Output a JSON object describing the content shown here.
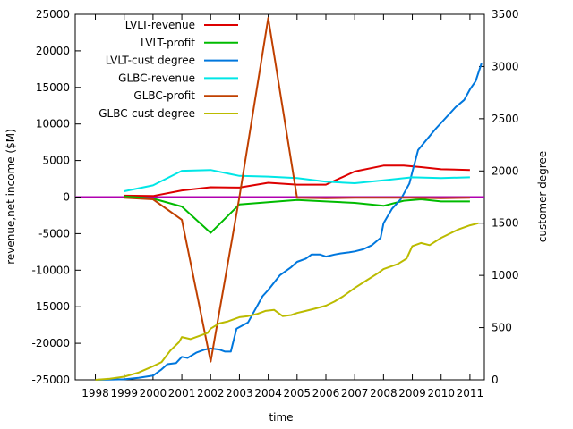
{
  "chart_data": {
    "type": "line",
    "xlabel": "time",
    "ylabel_left": "revenue,net income ($M)",
    "ylabel_right": "customer degree",
    "x_range": [
      1997.3,
      2011.5
    ],
    "ylim_left": [
      -25000,
      25000
    ],
    "ylim_right": [
      0,
      3500
    ],
    "grid": false,
    "legend_position": "top-left",
    "x_ticks": [
      1998,
      1999,
      2000,
      2001,
      2002,
      2003,
      2004,
      2005,
      2006,
      2007,
      2008,
      2009,
      2010,
      2011
    ],
    "x_tick_labels": [
      "1998",
      "1999",
      "2000",
      "2001",
      "2002",
      "2003",
      "2004",
      "2005",
      "2006",
      "2007",
      "2008",
      "2009",
      "2010",
      "2011"
    ],
    "y_ticks_left": [
      25000,
      20000,
      15000,
      10000,
      5000,
      0,
      -5000,
      -10000,
      -15000,
      -20000,
      -25000
    ],
    "y_tick_labels_left": [
      "25000",
      "20000",
      "15000",
      "10000",
      "5000",
      "0",
      "-5000",
      "-10000",
      "-15000",
      "-20000",
      "-25000"
    ],
    "y_ticks_right": [
      3500,
      3000,
      2500,
      2000,
      1500,
      1000,
      500,
      0
    ],
    "y_tick_labels_right": [
      "3500",
      "3000",
      "2500",
      "2000",
      "1500",
      "1000",
      "500",
      "0"
    ],
    "zero_line_color": "#b000b0",
    "series": [
      {
        "name": "LVLT-revenue",
        "color": "#dd0000",
        "axis": "left",
        "points": [
          [
            1999.0,
            200
          ],
          [
            2000.0,
            150
          ],
          [
            2001.0,
            900
          ],
          [
            2002.0,
            1350
          ],
          [
            2003.0,
            1300
          ],
          [
            2004.0,
            1950
          ],
          [
            2005.0,
            1700
          ],
          [
            2006.0,
            1700
          ],
          [
            2007.0,
            3500
          ],
          [
            2008.0,
            4300
          ],
          [
            2008.7,
            4300
          ],
          [
            2009.3,
            4100
          ],
          [
            2010.0,
            3800
          ],
          [
            2011.0,
            3700
          ]
        ]
      },
      {
        "name": "LVLT-profit",
        "color": "#00bb00",
        "axis": "left",
        "points": [
          [
            1999.0,
            100
          ],
          [
            2000.0,
            -200
          ],
          [
            2001.0,
            -1300
          ],
          [
            2002.0,
            -4900
          ],
          [
            2003.0,
            -1000
          ],
          [
            2004.0,
            -700
          ],
          [
            2005.0,
            -400
          ],
          [
            2006.0,
            -600
          ],
          [
            2007.0,
            -800
          ],
          [
            2008.0,
            -1200
          ],
          [
            2008.7,
            -500
          ],
          [
            2009.3,
            -300
          ],
          [
            2010.0,
            -600
          ],
          [
            2011.0,
            -600
          ]
        ]
      },
      {
        "name": "LVLT-cust degree",
        "color": "#0077dd",
        "axis": "right",
        "points": [
          [
            1998.0,
            0
          ],
          [
            1999.0,
            5
          ],
          [
            1999.5,
            20
          ],
          [
            2000.0,
            40
          ],
          [
            2000.3,
            100
          ],
          [
            2000.5,
            150
          ],
          [
            2000.8,
            160
          ],
          [
            2001.0,
            220
          ],
          [
            2001.2,
            210
          ],
          [
            2001.5,
            260
          ],
          [
            2001.8,
            290
          ],
          [
            2002.0,
            300
          ],
          [
            2002.3,
            290
          ],
          [
            2002.5,
            270
          ],
          [
            2002.7,
            270
          ],
          [
            2002.9,
            490
          ],
          [
            2003.3,
            550
          ],
          [
            2003.6,
            700
          ],
          [
            2003.8,
            800
          ],
          [
            2004.0,
            860
          ],
          [
            2004.4,
            1000
          ],
          [
            2004.8,
            1080
          ],
          [
            2005.0,
            1130
          ],
          [
            2005.3,
            1160
          ],
          [
            2005.5,
            1200
          ],
          [
            2005.8,
            1200
          ],
          [
            2006.0,
            1180
          ],
          [
            2006.3,
            1200
          ],
          [
            2006.5,
            1210
          ],
          [
            2006.8,
            1220
          ],
          [
            2007.0,
            1230
          ],
          [
            2007.3,
            1250
          ],
          [
            2007.6,
            1290
          ],
          [
            2007.9,
            1360
          ],
          [
            2008.0,
            1500
          ],
          [
            2008.3,
            1640
          ],
          [
            2008.6,
            1730
          ],
          [
            2008.9,
            1880
          ],
          [
            2009.0,
            1990
          ],
          [
            2009.2,
            2200
          ],
          [
            2009.5,
            2300
          ],
          [
            2009.8,
            2400
          ],
          [
            2010.0,
            2460
          ],
          [
            2010.3,
            2550
          ],
          [
            2010.5,
            2610
          ],
          [
            2010.8,
            2680
          ],
          [
            2011.0,
            2780
          ],
          [
            2011.2,
            2860
          ],
          [
            2011.4,
            3030
          ]
        ]
      },
      {
        "name": "GLBC-revenue",
        "color": "#00e6e6",
        "axis": "left",
        "points": [
          [
            1999.0,
            800
          ],
          [
            2000.0,
            1600
          ],
          [
            2001.0,
            3600
          ],
          [
            2002.0,
            3700
          ],
          [
            2003.0,
            2900
          ],
          [
            2004.0,
            2800
          ],
          [
            2005.0,
            2600
          ],
          [
            2006.0,
            2100
          ],
          [
            2007.0,
            1900
          ],
          [
            2008.0,
            2300
          ],
          [
            2009.0,
            2700
          ],
          [
            2010.0,
            2600
          ],
          [
            2011.0,
            2700
          ]
        ]
      },
      {
        "name": "GLBC-profit",
        "color": "#c04000",
        "axis": "left",
        "points": [
          [
            1999.0,
            -100
          ],
          [
            2000.0,
            -300
          ],
          [
            2001.0,
            -3100
          ],
          [
            2002.0,
            -22500
          ],
          [
            2003.0,
            0
          ],
          [
            2004.0,
            24500
          ],
          [
            2005.0,
            -100
          ],
          [
            2006.0,
            -150
          ],
          [
            2007.0,
            -100
          ],
          [
            2008.0,
            -100
          ],
          [
            2009.0,
            -100
          ],
          [
            2010.0,
            -150
          ],
          [
            2011.0,
            -100
          ]
        ]
      },
      {
        "name": "GLBC-cust degree",
        "color": "#bbbb00",
        "axis": "right",
        "points": [
          [
            1998.0,
            0
          ],
          [
            1998.5,
            10
          ],
          [
            1999.0,
            30
          ],
          [
            1999.5,
            70
          ],
          [
            2000.0,
            130
          ],
          [
            2000.3,
            170
          ],
          [
            2000.6,
            280
          ],
          [
            2000.9,
            360
          ],
          [
            2001.0,
            410
          ],
          [
            2001.3,
            390
          ],
          [
            2001.6,
            420
          ],
          [
            2001.9,
            450
          ],
          [
            2002.0,
            490
          ],
          [
            2002.3,
            540
          ],
          [
            2002.6,
            560
          ],
          [
            2002.9,
            590
          ],
          [
            2003.0,
            600
          ],
          [
            2003.3,
            610
          ],
          [
            2003.6,
            630
          ],
          [
            2003.9,
            660
          ],
          [
            2004.2,
            670
          ],
          [
            2004.5,
            610
          ],
          [
            2004.8,
            620
          ],
          [
            2005.0,
            640
          ],
          [
            2005.3,
            660
          ],
          [
            2005.6,
            680
          ],
          [
            2006.0,
            710
          ],
          [
            2006.3,
            750
          ],
          [
            2006.6,
            800
          ],
          [
            2007.0,
            880
          ],
          [
            2007.4,
            950
          ],
          [
            2007.8,
            1020
          ],
          [
            2008.0,
            1060
          ],
          [
            2008.5,
            1110
          ],
          [
            2008.8,
            1160
          ],
          [
            2009.0,
            1280
          ],
          [
            2009.3,
            1310
          ],
          [
            2009.6,
            1290
          ],
          [
            2010.0,
            1360
          ],
          [
            2010.3,
            1400
          ],
          [
            2010.6,
            1440
          ],
          [
            2011.0,
            1480
          ],
          [
            2011.3,
            1500
          ]
        ]
      }
    ]
  }
}
